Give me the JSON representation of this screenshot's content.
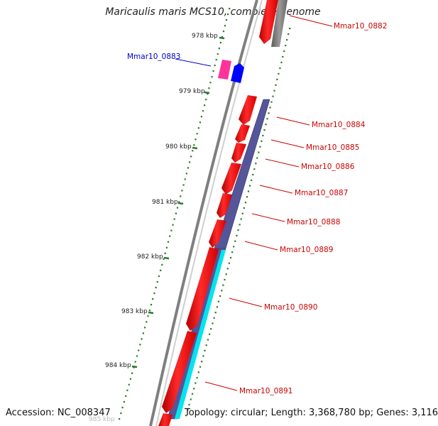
{
  "title": "Maricaulis maris MCS10, complete genome",
  "accession_text": "Accession: NC_008347",
  "summary_text": "Topology: circular; Length: 3,368,780 bp; Genes: 3,116",
  "colors": {
    "backbone": "#7f7f7f",
    "forward_gene": "#ff0000",
    "reverse_gene": "#555599",
    "reverse_highlight": "#00e5ee",
    "forward_label": "#cc0000",
    "selected_label": "#0000cc",
    "ticks": "#2a7a2a",
    "other_gene": "#7a7a7a",
    "pink_gene": "#ff3399",
    "blue_gene": "#0000ff"
  },
  "ticks": [
    {
      "label": "978 kbp"
    },
    {
      "label": "979 kbp"
    },
    {
      "label": "980 kbp"
    },
    {
      "label": "981 kbp"
    },
    {
      "label": "982 kbp"
    },
    {
      "label": "983 kbp"
    },
    {
      "label": "984 kbp"
    },
    {
      "label": "985 kbp"
    }
  ],
  "gene_labels": [
    {
      "id": "Mmar10_0882",
      "strand": "forward"
    },
    {
      "id": "Mmar10_0883",
      "strand": "selected"
    },
    {
      "id": "Mmar10_0884",
      "strand": "forward"
    },
    {
      "id": "Mmar10_0885",
      "strand": "forward"
    },
    {
      "id": "Mmar10_0886",
      "strand": "forward"
    },
    {
      "id": "Mmar10_0887",
      "strand": "forward"
    },
    {
      "id": "Mmar10_0888",
      "strand": "forward"
    },
    {
      "id": "Mmar10_0889",
      "strand": "forward"
    },
    {
      "id": "Mmar10_0890",
      "strand": "forward"
    },
    {
      "id": "Mmar10_0891",
      "strand": "forward"
    }
  ]
}
